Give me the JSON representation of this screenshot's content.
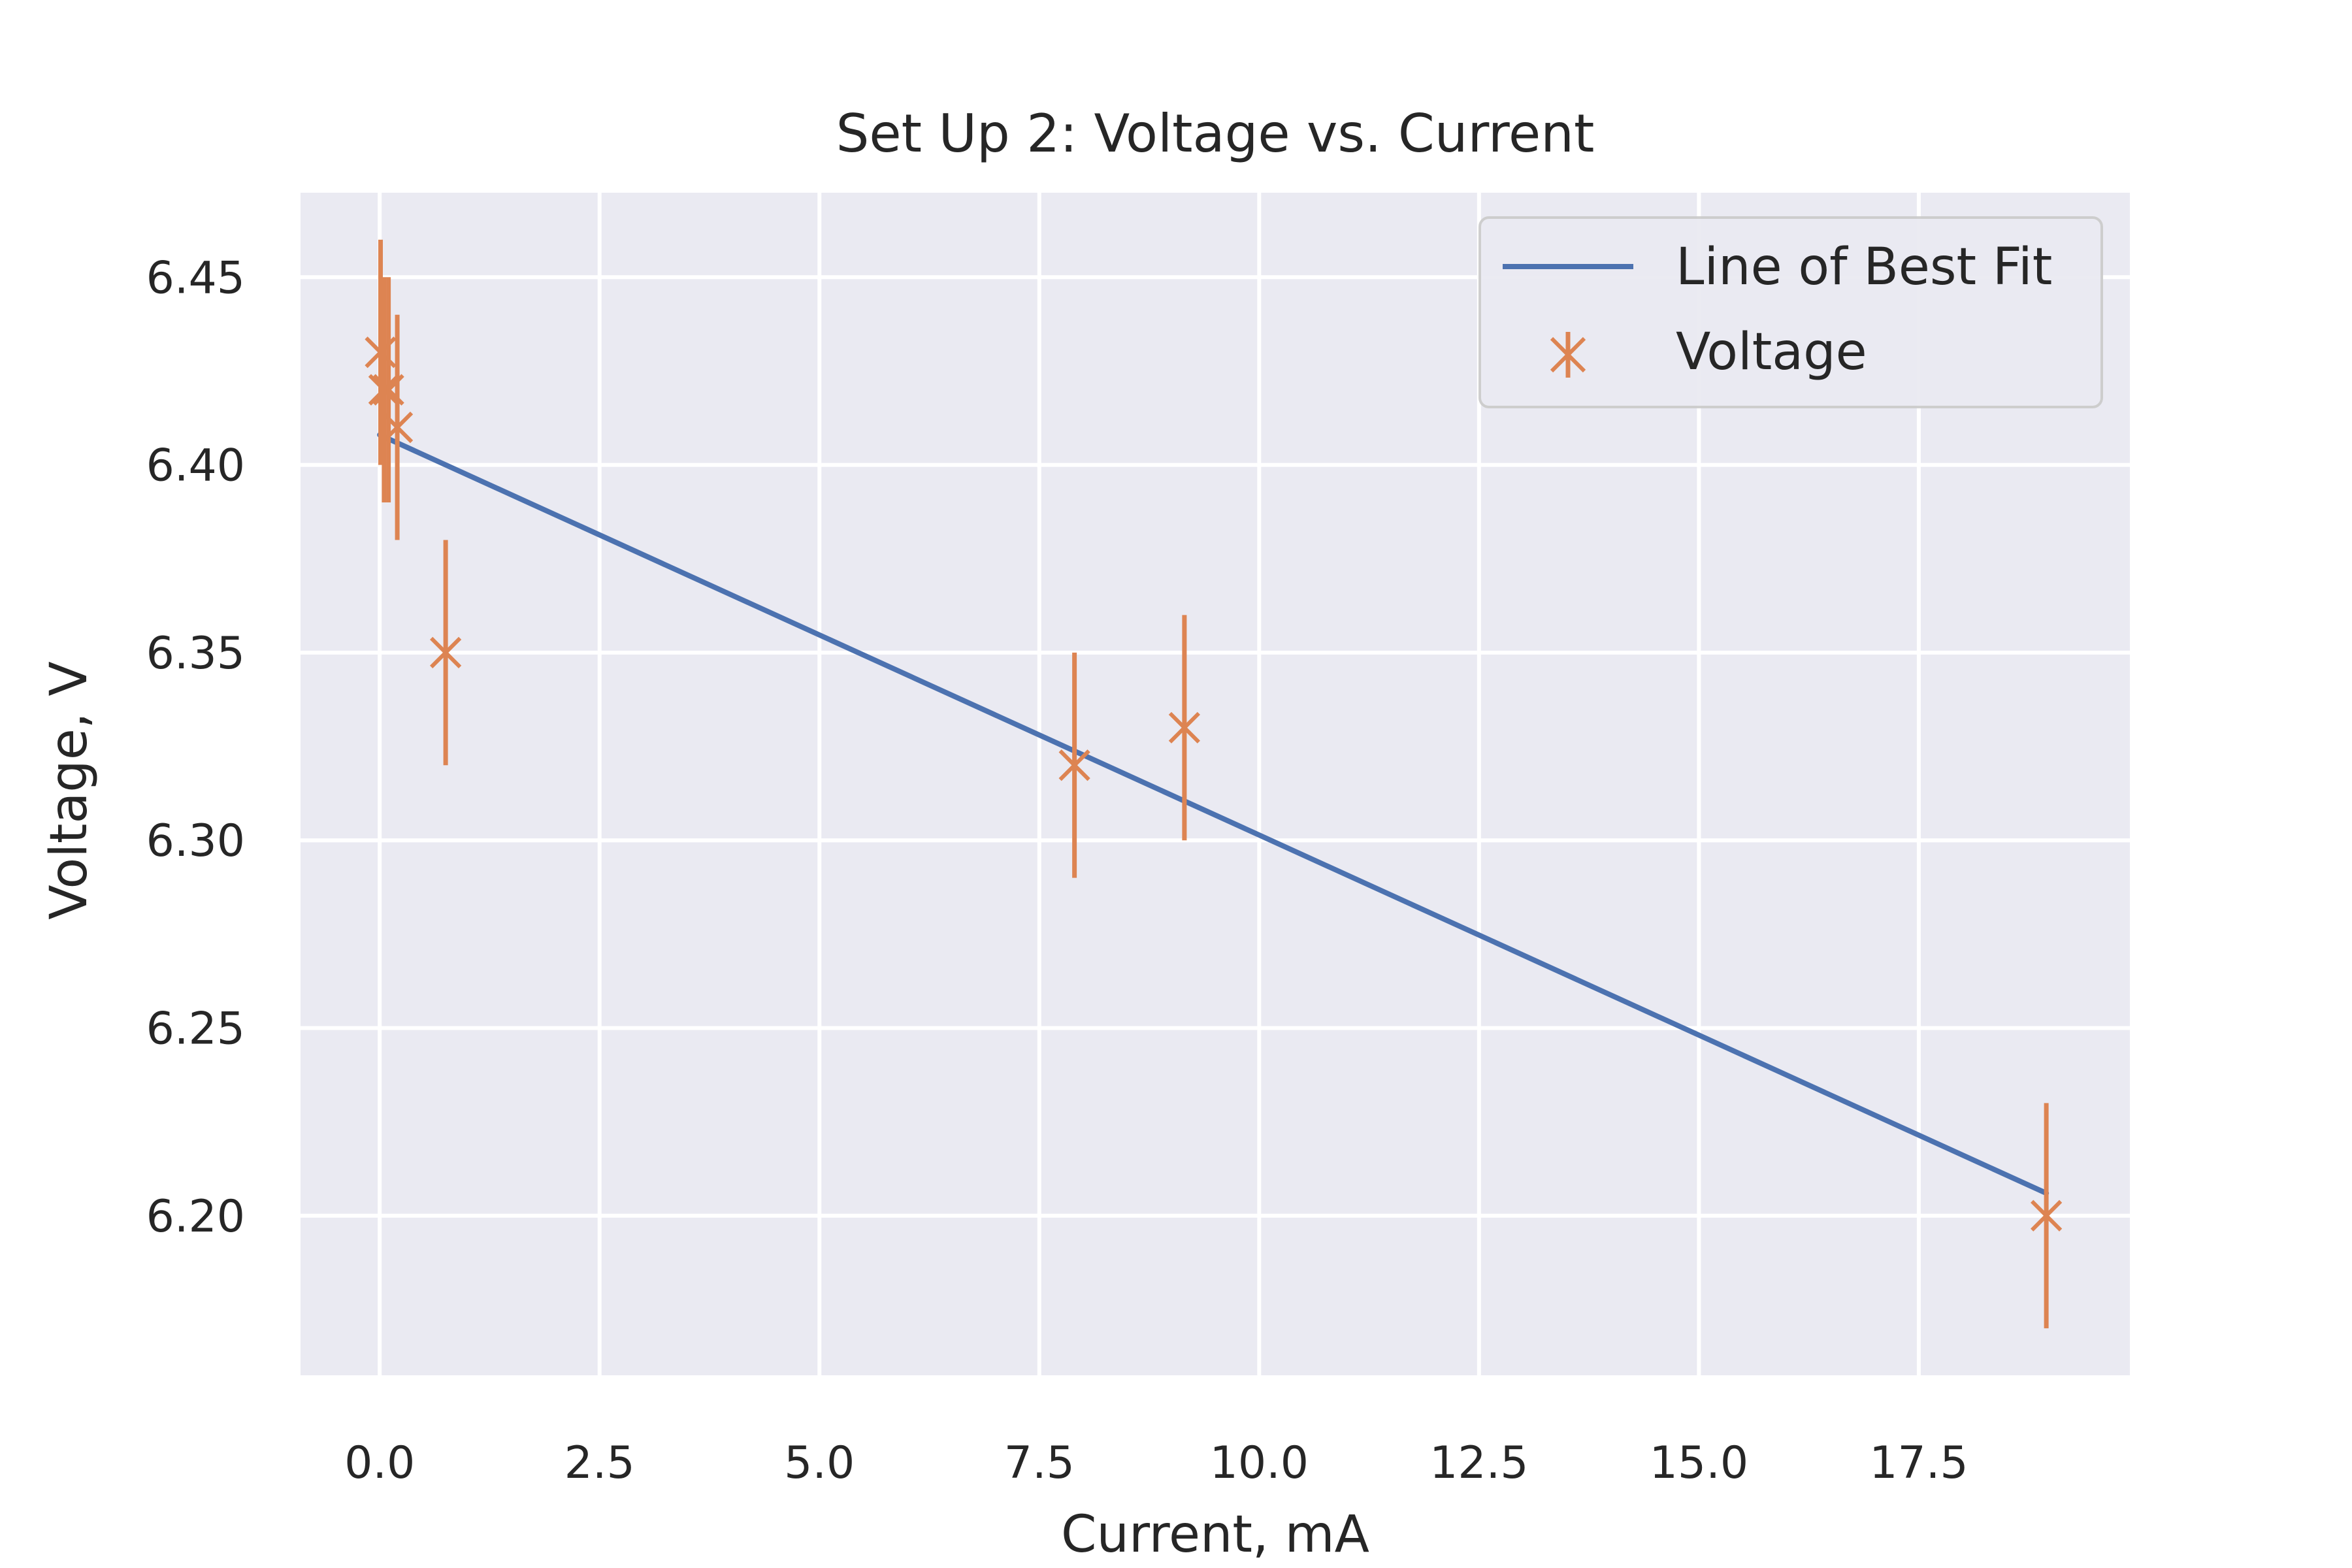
{
  "chart_data": {
    "type": "scatter",
    "title": "Set Up 2: Voltage vs. Current",
    "xlabel": "Current, mA",
    "ylabel": "Voltage, V",
    "xlim": [
      -0.9,
      19.9
    ],
    "ylim": [
      6.1575,
      6.4725
    ],
    "xticks": [
      0.0,
      2.5,
      5.0,
      7.5,
      10.0,
      12.5,
      15.0,
      17.5
    ],
    "xtick_labels": [
      "0.0",
      "2.5",
      "5.0",
      "7.5",
      "10.0",
      "12.5",
      "15.0",
      "17.5"
    ],
    "yticks": [
      6.2,
      6.25,
      6.3,
      6.35,
      6.4,
      6.45
    ],
    "ytick_labels": [
      "6.20",
      "6.25",
      "6.30",
      "6.35",
      "6.40",
      "6.45"
    ],
    "grid": true,
    "legend_position": "top-right",
    "series": [
      {
        "name": "Line of Best Fit",
        "kind": "line",
        "color": "#4c72b0",
        "x": [
          0.0,
          18.95
        ],
        "y": [
          6.408,
          6.206
        ]
      },
      {
        "name": "Voltage",
        "kind": "errorbar",
        "marker": "x",
        "color": "#dd8452",
        "points": [
          {
            "x": 0.01,
            "y": 6.43,
            "err": 0.03
          },
          {
            "x": 0.05,
            "y": 6.42,
            "err": 0.03
          },
          {
            "x": 0.1,
            "y": 6.42,
            "err": 0.03
          },
          {
            "x": 0.2,
            "y": 6.41,
            "err": 0.03
          },
          {
            "x": 0.75,
            "y": 6.35,
            "err": 0.03
          },
          {
            "x": 7.9,
            "y": 6.32,
            "err": 0.03
          },
          {
            "x": 9.15,
            "y": 6.33,
            "err": 0.03
          },
          {
            "x": 18.95,
            "y": 6.2,
            "err": 0.03
          }
        ]
      }
    ]
  }
}
